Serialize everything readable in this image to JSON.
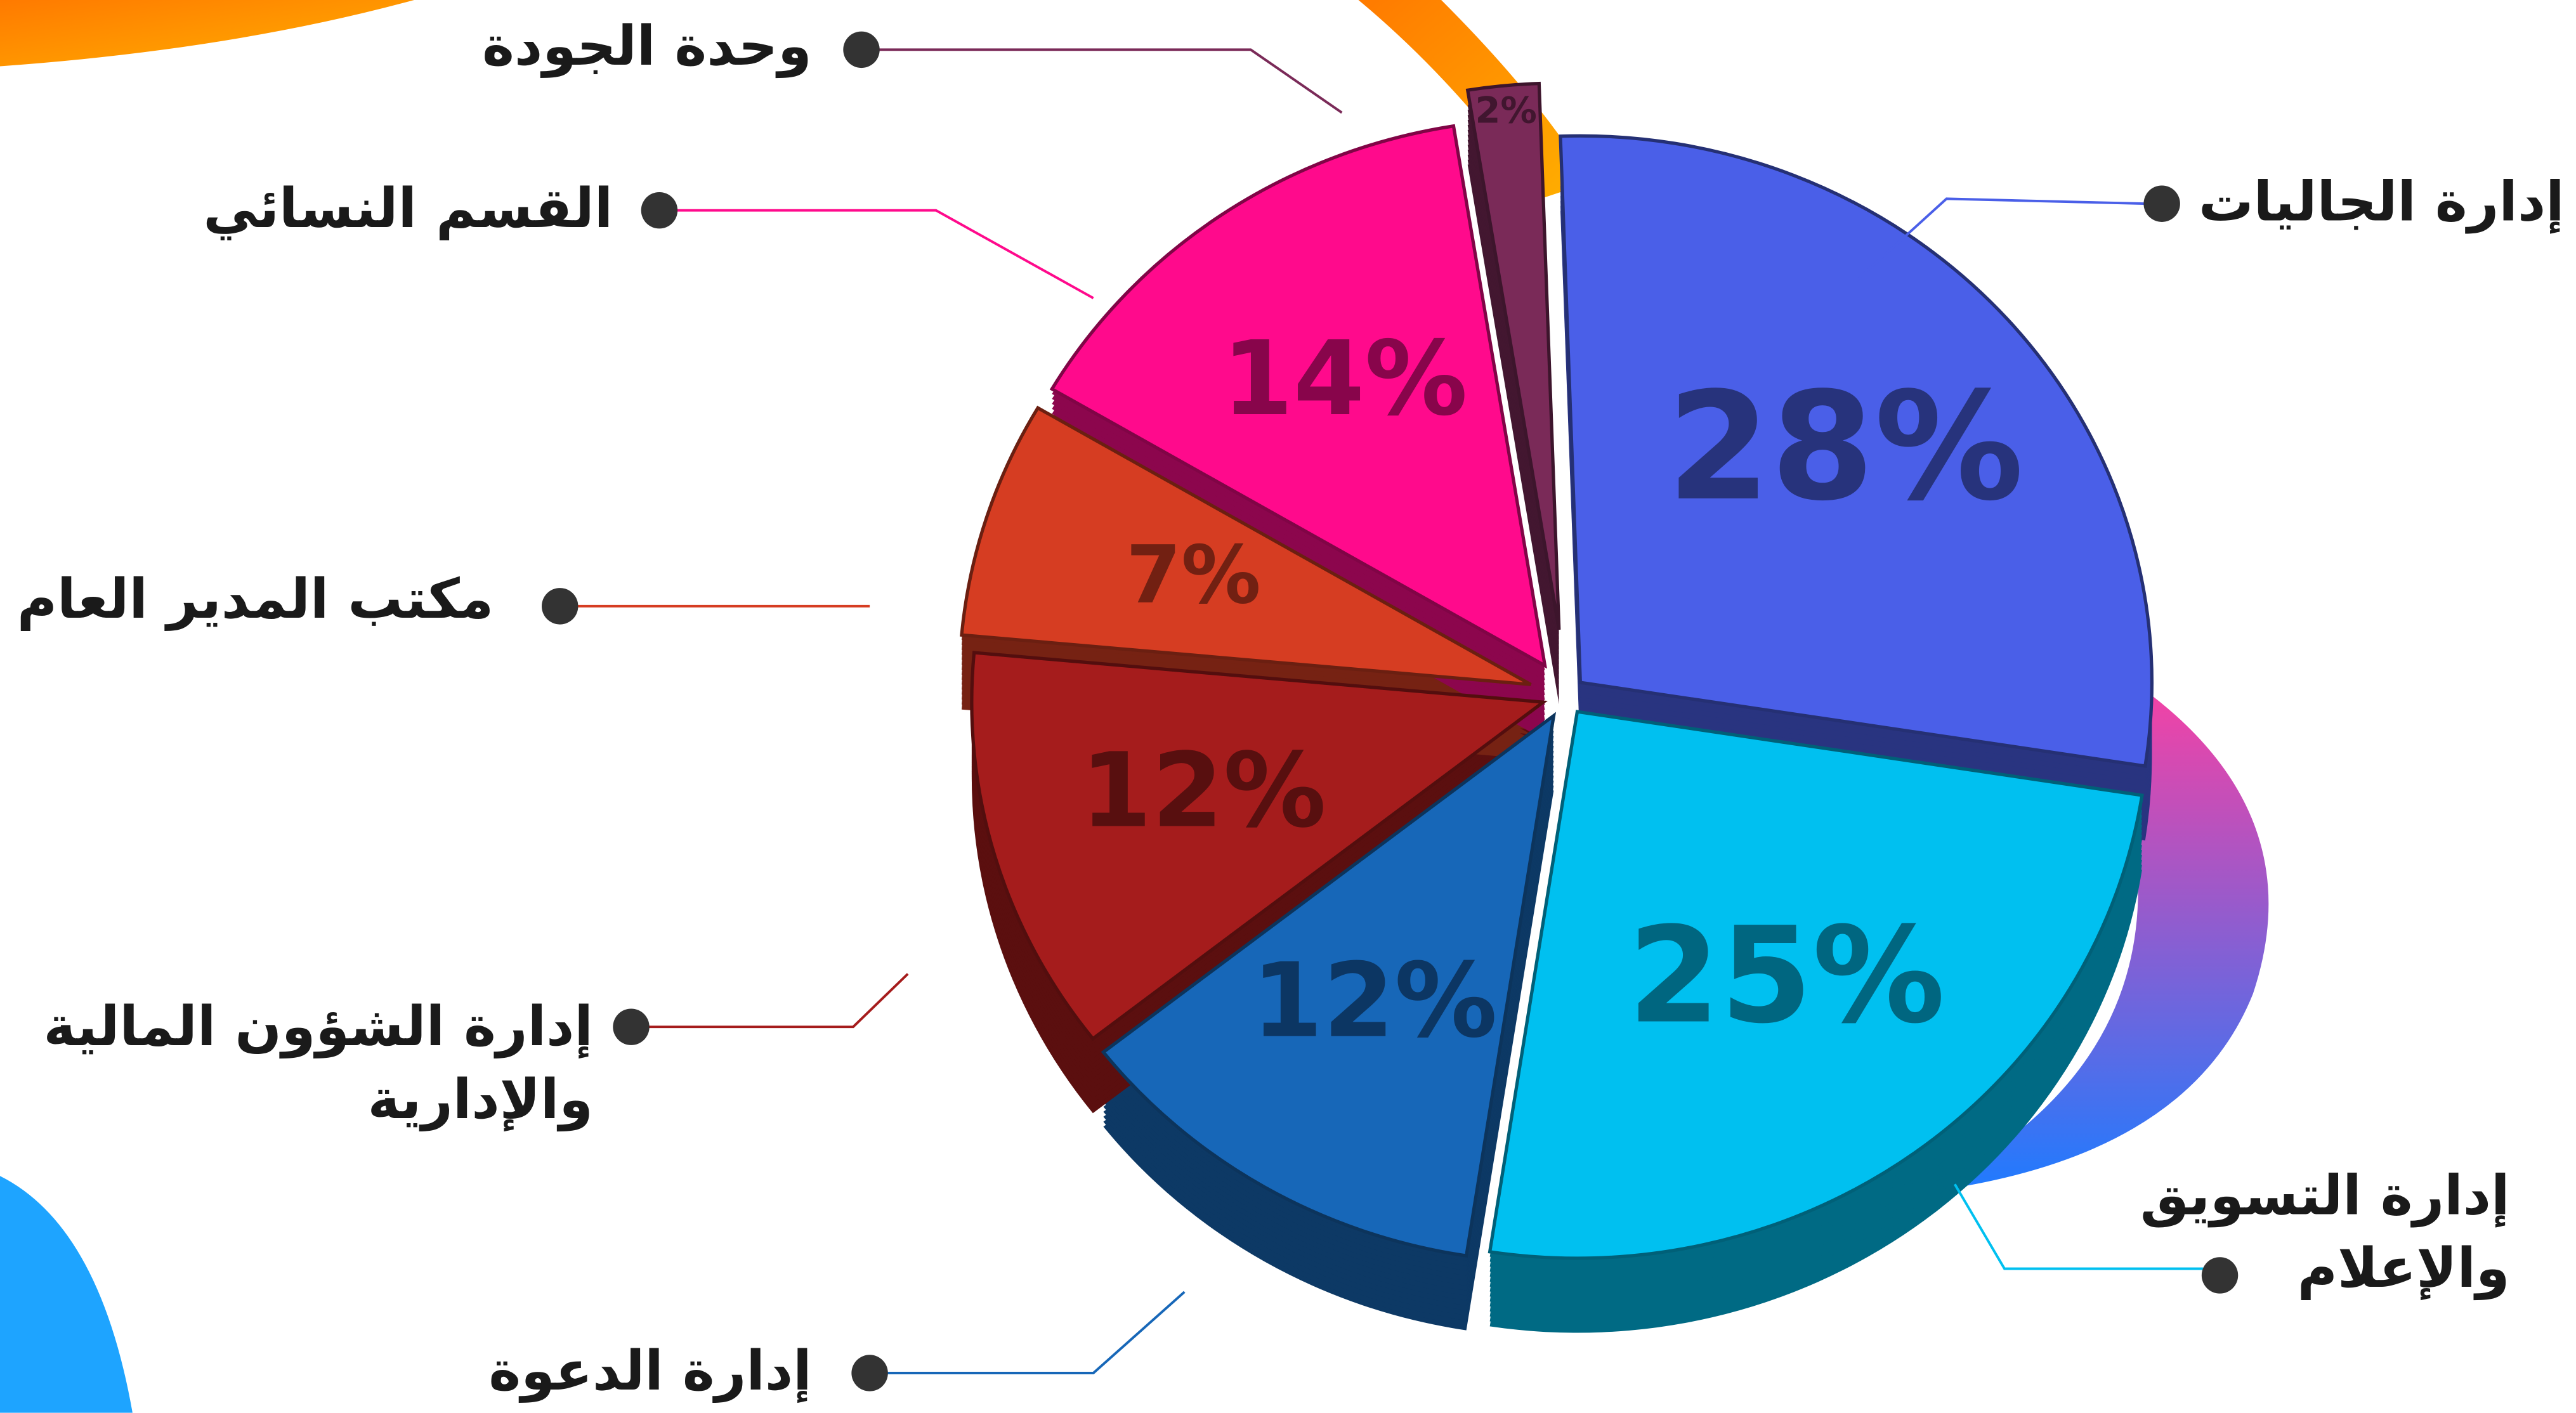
{
  "chart_data": {
    "type": "pie",
    "categories": [
      "إدارة الجاليات",
      "إدارة التسويق والإعلام",
      "إدارة الدعوة",
      "إدارة الشؤون المالية والإدارية",
      "مكتب المدير العام",
      "القسم النسائي",
      "وحدة الجودة"
    ],
    "values": [
      28,
      25,
      12,
      12,
      7,
      14,
      2
    ],
    "value_labels": [
      "28%",
      "25%",
      "12%",
      "12%",
      "7%",
      "14%",
      "2%"
    ],
    "colors": [
      "#4a5fe8",
      "#00c0f0",
      "#1767b8",
      "#a51c1c",
      "#d63d22",
      "#ff0a8c",
      "#7a2a58"
    ]
  }
}
